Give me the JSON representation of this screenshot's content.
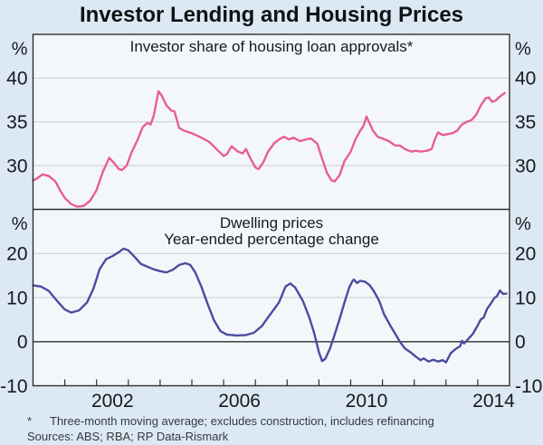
{
  "title": "Investor Lending and Housing Prices",
  "footnote": {
    "marker": "*",
    "text": "Three-month moving average; excludes construction, includes refinancing"
  },
  "sources": "Sources: ABS; RBA; RP Data-Rismark",
  "colors": {
    "background": "#dce9f4",
    "plot_background": "#f4f7fa",
    "axis": "#2e2e2e",
    "gridline": "#c7ccd1",
    "investor_line": "#e85d99",
    "dwelling_line": "#4b4ba0"
  },
  "chart_data": {
    "type": "line",
    "title": "Investor Lending and Housing Prices",
    "x_axis": {
      "min": 2000,
      "max": 2015,
      "tick_years": [
        2001,
        2002,
        2003,
        2004,
        2005,
        2006,
        2007,
        2008,
        2009,
        2010,
        2011,
        2012,
        2013,
        2014
      ],
      "labels": [
        {
          "year": 2002,
          "label": "2002"
        },
        {
          "year": 2006,
          "label": "2006"
        },
        {
          "year": 2010,
          "label": "2010"
        },
        {
          "year": 2014,
          "label": "2014"
        }
      ]
    },
    "panels": [
      {
        "title": "Investor share of housing loan approvals*",
        "unit": "%",
        "ylim": [
          25,
          45
        ],
        "gridlines": [
          30,
          35,
          40
        ],
        "ylabels": [
          {
            "value": 40,
            "label": "40"
          },
          {
            "value": 35,
            "label": "35"
          },
          {
            "value": 30,
            "label": "30"
          }
        ],
        "series": {
          "name": "Investor share of housing loan approvals",
          "color": "#e85d99",
          "points": [
            [
              2000.0,
              28.3
            ],
            [
              2000.15,
              28.6
            ],
            [
              2000.3,
              29.0
            ],
            [
              2000.5,
              28.8
            ],
            [
              2000.7,
              28.2
            ],
            [
              2000.85,
              27.2
            ],
            [
              2001.0,
              26.3
            ],
            [
              2001.2,
              25.6
            ],
            [
              2001.4,
              25.3
            ],
            [
              2001.6,
              25.4
            ],
            [
              2001.8,
              26.0
            ],
            [
              2002.0,
              27.2
            ],
            [
              2002.2,
              29.3
            ],
            [
              2002.4,
              30.9
            ],
            [
              2002.55,
              30.3
            ],
            [
              2002.7,
              29.6
            ],
            [
              2002.8,
              29.5
            ],
            [
              2002.95,
              30.0
            ],
            [
              2003.1,
              31.5
            ],
            [
              2003.3,
              33.0
            ],
            [
              2003.45,
              34.4
            ],
            [
              2003.6,
              34.9
            ],
            [
              2003.7,
              34.7
            ],
            [
              2003.8,
              35.7
            ],
            [
              2003.95,
              38.5
            ],
            [
              2004.05,
              38.0
            ],
            [
              2004.2,
              36.9
            ],
            [
              2004.35,
              36.3
            ],
            [
              2004.45,
              36.2
            ],
            [
              2004.6,
              34.3
            ],
            [
              2004.75,
              34.0
            ],
            [
              2005.0,
              33.7
            ],
            [
              2005.3,
              33.2
            ],
            [
              2005.55,
              32.7
            ],
            [
              2005.8,
              31.8
            ],
            [
              2006.0,
              31.1
            ],
            [
              2006.1,
              31.3
            ],
            [
              2006.25,
              32.2
            ],
            [
              2006.45,
              31.6
            ],
            [
              2006.6,
              31.4
            ],
            [
              2006.7,
              31.9
            ],
            [
              2006.85,
              30.8
            ],
            [
              2007.0,
              29.8
            ],
            [
              2007.1,
              29.6
            ],
            [
              2007.25,
              30.4
            ],
            [
              2007.4,
              31.6
            ],
            [
              2007.6,
              32.6
            ],
            [
              2007.75,
              33.0
            ],
            [
              2007.9,
              33.3
            ],
            [
              2008.05,
              33.0
            ],
            [
              2008.2,
              33.2
            ],
            [
              2008.4,
              32.8
            ],
            [
              2008.6,
              33.0
            ],
            [
              2008.75,
              33.1
            ],
            [
              2008.95,
              32.5
            ],
            [
              2009.1,
              30.8
            ],
            [
              2009.25,
              29.2
            ],
            [
              2009.4,
              28.3
            ],
            [
              2009.5,
              28.2
            ],
            [
              2009.65,
              28.9
            ],
            [
              2009.8,
              30.5
            ],
            [
              2010.0,
              31.6
            ],
            [
              2010.15,
              33.0
            ],
            [
              2010.3,
              34.0
            ],
            [
              2010.4,
              34.5
            ],
            [
              2010.5,
              35.6
            ],
            [
              2010.6,
              34.8
            ],
            [
              2010.7,
              34.0
            ],
            [
              2010.85,
              33.3
            ],
            [
              2011.0,
              33.1
            ],
            [
              2011.2,
              32.8
            ],
            [
              2011.4,
              32.3
            ],
            [
              2011.55,
              32.3
            ],
            [
              2011.7,
              31.9
            ],
            [
              2011.9,
              31.6
            ],
            [
              2012.05,
              31.7
            ],
            [
              2012.2,
              31.6
            ],
            [
              2012.4,
              31.7
            ],
            [
              2012.55,
              31.9
            ],
            [
              2012.65,
              33.0
            ],
            [
              2012.75,
              33.8
            ],
            [
              2012.9,
              33.5
            ],
            [
              2013.05,
              33.6
            ],
            [
              2013.2,
              33.7
            ],
            [
              2013.35,
              34.0
            ],
            [
              2013.5,
              34.7
            ],
            [
              2013.65,
              35.0
            ],
            [
              2013.8,
              35.2
            ],
            [
              2013.95,
              35.8
            ],
            [
              2014.1,
              36.9
            ],
            [
              2014.25,
              37.7
            ],
            [
              2014.35,
              37.8
            ],
            [
              2014.45,
              37.3
            ],
            [
              2014.55,
              37.4
            ],
            [
              2014.7,
              37.9
            ],
            [
              2014.85,
              38.3
            ]
          ]
        }
      },
      {
        "title": "Dwelling prices",
        "subtitle": "Year-ended percentage change",
        "unit": "%",
        "ylim": [
          -10,
          30
        ],
        "gridlines": [
          0,
          10,
          20
        ],
        "ylabels": [
          {
            "value": 20,
            "label": "20"
          },
          {
            "value": 10,
            "label": "10"
          },
          {
            "value": 0,
            "label": "0"
          },
          {
            "value": -10,
            "label": "-10"
          }
        ],
        "series": {
          "name": "Dwelling prices, year-ended percentage change",
          "color": "#4b4ba0",
          "points": [
            [
              2000.0,
              12.8
            ],
            [
              2000.25,
              12.5
            ],
            [
              2000.5,
              11.5
            ],
            [
              2000.75,
              9.3
            ],
            [
              2001.0,
              7.3
            ],
            [
              2001.2,
              6.6
            ],
            [
              2001.45,
              7.1
            ],
            [
              2001.7,
              8.9
            ],
            [
              2001.9,
              12.0
            ],
            [
              2002.1,
              16.5
            ],
            [
              2002.3,
              18.7
            ],
            [
              2002.5,
              19.4
            ],
            [
              2002.7,
              20.3
            ],
            [
              2002.85,
              21.1
            ],
            [
              2003.0,
              20.7
            ],
            [
              2003.2,
              19.2
            ],
            [
              2003.4,
              17.6
            ],
            [
              2003.6,
              17.0
            ],
            [
              2003.8,
              16.4
            ],
            [
              2004.0,
              16.0
            ],
            [
              2004.2,
              15.7
            ],
            [
              2004.4,
              16.3
            ],
            [
              2004.6,
              17.4
            ],
            [
              2004.8,
              17.8
            ],
            [
              2004.95,
              17.4
            ],
            [
              2005.1,
              15.8
            ],
            [
              2005.3,
              12.5
            ],
            [
              2005.5,
              8.5
            ],
            [
              2005.7,
              4.8
            ],
            [
              2005.9,
              2.4
            ],
            [
              2006.1,
              1.6
            ],
            [
              2006.4,
              1.4
            ],
            [
              2006.7,
              1.5
            ],
            [
              2006.95,
              2.0
            ],
            [
              2007.2,
              3.5
            ],
            [
              2007.4,
              5.5
            ],
            [
              2007.6,
              7.5
            ],
            [
              2007.75,
              9.0
            ],
            [
              2007.95,
              12.5
            ],
            [
              2008.1,
              13.2
            ],
            [
              2008.25,
              12.3
            ],
            [
              2008.5,
              9.2
            ],
            [
              2008.7,
              5.4
            ],
            [
              2008.85,
              2.0
            ],
            [
              2009.0,
              -2.4
            ],
            [
              2009.1,
              -4.4
            ],
            [
              2009.2,
              -3.9
            ],
            [
              2009.35,
              -1.5
            ],
            [
              2009.5,
              1.7
            ],
            [
              2009.65,
              5.1
            ],
            [
              2009.8,
              8.8
            ],
            [
              2009.95,
              12.2
            ],
            [
              2010.05,
              13.7
            ],
            [
              2010.1,
              14.1
            ],
            [
              2010.2,
              13.3
            ],
            [
              2010.3,
              13.8
            ],
            [
              2010.45,
              13.6
            ],
            [
              2010.6,
              12.8
            ],
            [
              2010.75,
              11.2
            ],
            [
              2010.9,
              9.2
            ],
            [
              2011.05,
              6.2
            ],
            [
              2011.25,
              3.6
            ],
            [
              2011.45,
              1.2
            ],
            [
              2011.55,
              0.0
            ],
            [
              2011.7,
              -1.5
            ],
            [
              2011.9,
              -2.5
            ],
            [
              2012.05,
              -3.4
            ],
            [
              2012.2,
              -4.2
            ],
            [
              2012.3,
              -3.8
            ],
            [
              2012.45,
              -4.5
            ],
            [
              2012.6,
              -4.1
            ],
            [
              2012.75,
              -4.5
            ],
            [
              2012.9,
              -4.2
            ],
            [
              2013.0,
              -4.7
            ],
            [
              2013.15,
              -2.6
            ],
            [
              2013.3,
              -1.7
            ],
            [
              2013.45,
              -1.0
            ],
            [
              2013.5,
              0.2
            ],
            [
              2013.57,
              -0.4
            ],
            [
              2013.7,
              0.6
            ],
            [
              2013.85,
              1.8
            ],
            [
              2014.0,
              3.7
            ],
            [
              2014.1,
              5.1
            ],
            [
              2014.18,
              5.4
            ],
            [
              2014.3,
              7.5
            ],
            [
              2014.42,
              8.7
            ],
            [
              2014.52,
              9.9
            ],
            [
              2014.6,
              10.3
            ],
            [
              2014.7,
              11.6
            ],
            [
              2014.8,
              10.8
            ],
            [
              2014.9,
              10.9
            ]
          ]
        }
      }
    ]
  }
}
